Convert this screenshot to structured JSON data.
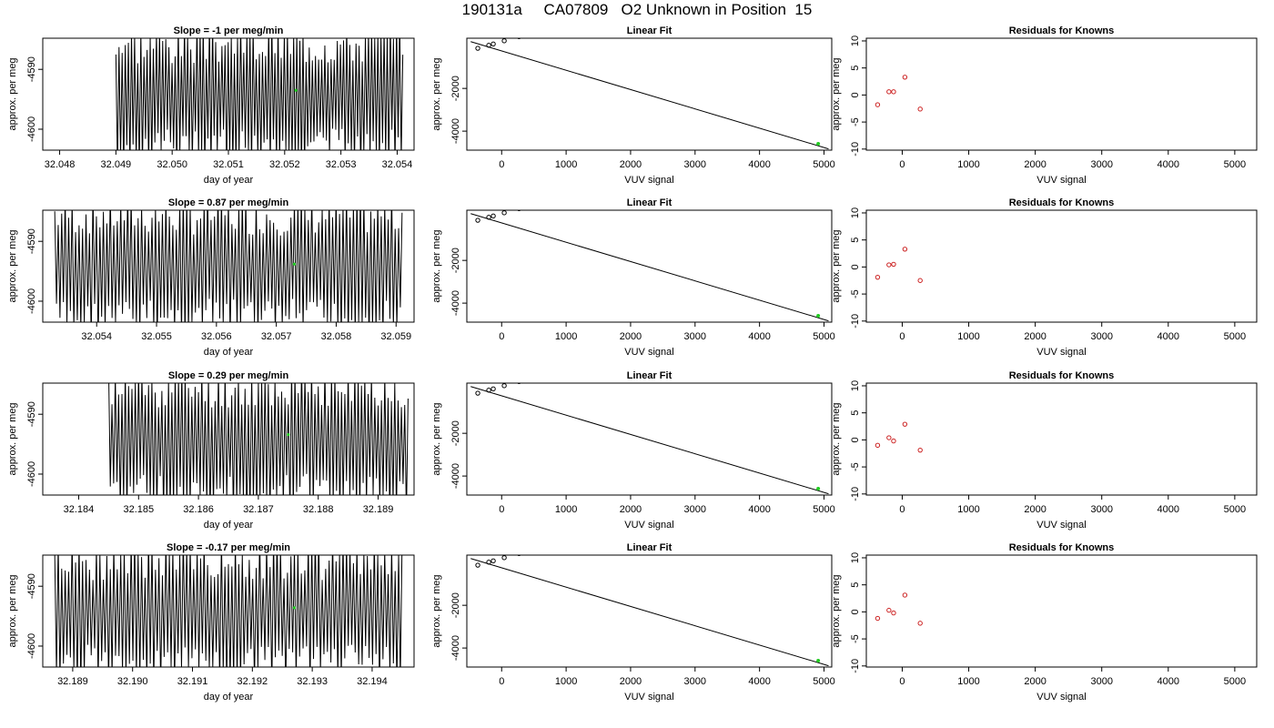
{
  "title": "190131a     CA07809   O2 Unknown in Position  15",
  "colors": {
    "trace": "#000000",
    "unknown": "#22cc22",
    "residual": "#cc2222",
    "fitline": "#000000"
  },
  "chart_data": [
    {
      "row": 0,
      "type": "line",
      "title": "Slope =  -1  per meg/min",
      "xlabel": "day of year",
      "ylabel": "approx. per meg",
      "xlim": [
        32.0477,
        32.0543
      ],
      "ylim": [
        -4603.5,
        -4584.8
      ],
      "xticks": [
        "32.048",
        "32.049",
        "32.050",
        "32.051",
        "32.052",
        "32.053",
        "32.054"
      ],
      "xtick_values": [
        32.048,
        32.049,
        32.05,
        32.051,
        32.052,
        32.053,
        32.054
      ],
      "yticks": [
        "-4590",
        "-4600"
      ],
      "ytick_values": [
        -4590,
        -4600
      ],
      "trace": {
        "start": 32.049,
        "end": 32.0541,
        "center": -4594.5,
        "amplitude": 9.8,
        "cycles": 92,
        "seed": 3
      },
      "marker": {
        "x": 32.0522,
        "y": -4593.5
      }
    },
    {
      "row": 1,
      "type": "line",
      "title": "Slope =  0.87  per meg/min",
      "xlabel": "day of year",
      "ylabel": "approx. per meg",
      "xlim": [
        32.0531,
        32.0593
      ],
      "ylim": [
        -4603.5,
        -4584.8
      ],
      "xticks": [
        "32.054",
        "32.055",
        "32.056",
        "32.057",
        "32.058",
        "32.059"
      ],
      "xtick_values": [
        32.054,
        32.055,
        32.056,
        32.057,
        32.058,
        32.059
      ],
      "yticks": [
        "-4590",
        "-4600"
      ],
      "ytick_values": [
        -4590,
        -4600
      ],
      "trace": {
        "start": 32.0533,
        "end": 32.0591,
        "center": -4594.3,
        "amplitude": 9.6,
        "cycles": 100,
        "seed": 7
      },
      "marker": {
        "x": 32.0573,
        "y": -4593.8
      }
    },
    {
      "row": 2,
      "type": "line",
      "title": "Slope =  0.29  per meg/min",
      "xlabel": "day of year",
      "ylabel": "approx. per meg",
      "xlim": [
        32.1834,
        32.1896
      ],
      "ylim": [
        -4603.5,
        -4584.8
      ],
      "xticks": [
        "32.184",
        "32.185",
        "32.186",
        "32.187",
        "32.188",
        "32.189"
      ],
      "xtick_values": [
        32.184,
        32.185,
        32.186,
        32.187,
        32.188,
        32.189
      ],
      "yticks": [
        "-4590",
        "-4600"
      ],
      "ytick_values": [
        -4590,
        -4600
      ],
      "trace": {
        "start": 32.1845,
        "end": 32.1895,
        "center": -4594.5,
        "amplitude": 9.8,
        "cycles": 90,
        "seed": 11
      },
      "marker": {
        "x": 32.1875,
        "y": -4593.4
      }
    },
    {
      "row": 3,
      "type": "line",
      "title": "Slope =  -0.17  per meg/min",
      "xlabel": "day of year",
      "ylabel": "approx. per meg",
      "xlim": [
        32.1885,
        32.1947
      ],
      "ylim": [
        -4603.5,
        -4584.8
      ],
      "xticks": [
        "32.189",
        "32.190",
        "32.191",
        "32.192",
        "32.193",
        "32.194"
      ],
      "xtick_values": [
        32.189,
        32.19,
        32.191,
        32.192,
        32.193,
        32.194
      ],
      "yticks": [
        "-4590",
        "-4600"
      ],
      "ytick_values": [
        -4590,
        -4600
      ],
      "trace": {
        "start": 32.1887,
        "end": 32.1945,
        "center": -4594.4,
        "amplitude": 9.8,
        "cycles": 100,
        "seed": 19
      },
      "marker": {
        "x": 32.1927,
        "y": -4593.6
      }
    },
    {
      "row": 0,
      "type": "scatter",
      "title": "Linear Fit",
      "xlabel": "VUV signal",
      "ylabel": "approx. per meg",
      "xlim": [
        -540,
        5120
      ],
      "ylim": [
        -4890,
        350
      ],
      "xticks": [
        "0",
        "1000",
        "2000",
        "3000",
        "4000",
        "5000"
      ],
      "xtick_values": [
        0,
        1000,
        2000,
        3000,
        4000,
        5000
      ],
      "yticks": [
        "-2000",
        "-4000"
      ],
      "ytick_values": [
        -2000,
        -4000
      ],
      "knowns": {
        "x": [
          -370,
          -200,
          -130,
          40,
          270
        ],
        "y": [
          -120,
          20,
          80,
          230,
          420
        ]
      },
      "fit_line": {
        "x": [
          -480,
          5070
        ],
        "y": [
          190,
          -4830
        ]
      },
      "unknown": {
        "x": 4910,
        "y": -4594
      }
    },
    {
      "row": 1,
      "type": "scatter",
      "title": "Linear Fit",
      "xlabel": "VUV signal",
      "ylabel": "approx. per meg",
      "xlim": [
        -540,
        5120
      ],
      "ylim": [
        -4890,
        350
      ],
      "xticks": [
        "0",
        "1000",
        "2000",
        "3000",
        "4000",
        "5000"
      ],
      "xtick_values": [
        0,
        1000,
        2000,
        3000,
        4000,
        5000
      ],
      "yticks": [
        "-2000",
        "-4000"
      ],
      "ytick_values": [
        -2000,
        -4000
      ],
      "knowns": {
        "x": [
          -370,
          -200,
          -130,
          40,
          270
        ],
        "y": [
          -120,
          20,
          80,
          230,
          420
        ]
      },
      "fit_line": {
        "x": [
          -480,
          5070
        ],
        "y": [
          190,
          -4830
        ]
      },
      "unknown": {
        "x": 4910,
        "y": -4594
      }
    },
    {
      "row": 2,
      "type": "scatter",
      "title": "Linear Fit",
      "xlabel": "VUV signal",
      "ylabel": "approx. per meg",
      "xlim": [
        -540,
        5120
      ],
      "ylim": [
        -4890,
        350
      ],
      "xticks": [
        "0",
        "1000",
        "2000",
        "3000",
        "4000",
        "5000"
      ],
      "xtick_values": [
        0,
        1000,
        2000,
        3000,
        4000,
        5000
      ],
      "yticks": [
        "-2000",
        "-4000"
      ],
      "ytick_values": [
        -2000,
        -4000
      ],
      "knowns": {
        "x": [
          -370,
          -200,
          -130,
          40,
          270
        ],
        "y": [
          -120,
          20,
          80,
          230,
          420
        ]
      },
      "fit_line": {
        "x": [
          -480,
          5070
        ],
        "y": [
          190,
          -4830
        ]
      },
      "unknown": {
        "x": 4910,
        "y": -4594
      }
    },
    {
      "row": 3,
      "type": "scatter",
      "title": "Linear Fit",
      "xlabel": "VUV signal",
      "ylabel": "approx. per meg",
      "xlim": [
        -540,
        5120
      ],
      "ylim": [
        -4890,
        350
      ],
      "xticks": [
        "0",
        "1000",
        "2000",
        "3000",
        "4000",
        "5000"
      ],
      "xtick_values": [
        0,
        1000,
        2000,
        3000,
        4000,
        5000
      ],
      "yticks": [
        "-2000",
        "-4000"
      ],
      "ytick_values": [
        -2000,
        -4000
      ],
      "knowns": {
        "x": [
          -370,
          -200,
          -130,
          40,
          270
        ],
        "y": [
          -120,
          20,
          80,
          230,
          420
        ]
      },
      "fit_line": {
        "x": [
          -480,
          5070
        ],
        "y": [
          190,
          -4830
        ]
      },
      "unknown": {
        "x": 4910,
        "y": -4594
      }
    },
    {
      "row": 0,
      "type": "scatter",
      "title": "Residuals for Knowns",
      "xlabel": "VUV signal",
      "ylabel": "approx. per meg",
      "xlim": [
        -540,
        5330
      ],
      "ylim": [
        -10.2,
        10.5
      ],
      "xticks": [
        "0",
        "1000",
        "2000",
        "3000",
        "4000",
        "5000"
      ],
      "xtick_values": [
        0,
        1000,
        2000,
        3000,
        4000,
        5000
      ],
      "yticks": [
        "-10",
        "-5",
        "0",
        "5",
        "10"
      ],
      "ytick_values": [
        -10,
        -5,
        0,
        5,
        10
      ],
      "points": {
        "x": [
          -370,
          -200,
          -130,
          40,
          270
        ],
        "y": [
          -1.8,
          0.6,
          0.6,
          3.3,
          -2.6
        ]
      }
    },
    {
      "row": 1,
      "type": "scatter",
      "title": "Residuals for Knowns",
      "xlabel": "VUV signal",
      "ylabel": "approx. per meg",
      "xlim": [
        -540,
        5330
      ],
      "ylim": [
        -10.2,
        10.5
      ],
      "xticks": [
        "0",
        "1000",
        "2000",
        "3000",
        "4000",
        "5000"
      ],
      "xtick_values": [
        0,
        1000,
        2000,
        3000,
        4000,
        5000
      ],
      "yticks": [
        "-10",
        "-5",
        "0",
        "5",
        "10"
      ],
      "ytick_values": [
        -10,
        -5,
        0,
        5,
        10
      ],
      "points": {
        "x": [
          -370,
          -200,
          -130,
          40,
          270
        ],
        "y": [
          -1.9,
          0.4,
          0.5,
          3.3,
          -2.5
        ]
      }
    },
    {
      "row": 2,
      "type": "scatter",
      "title": "Residuals for Knowns",
      "xlabel": "VUV signal",
      "ylabel": "approx. per meg",
      "xlim": [
        -540,
        5330
      ],
      "ylim": [
        -10.2,
        10.5
      ],
      "xticks": [
        "0",
        "1000",
        "2000",
        "3000",
        "4000",
        "5000"
      ],
      "xtick_values": [
        0,
        1000,
        2000,
        3000,
        4000,
        5000
      ],
      "yticks": [
        "-10",
        "-5",
        "0",
        "5",
        "10"
      ],
      "ytick_values": [
        -10,
        -5,
        0,
        5,
        10
      ],
      "points": {
        "x": [
          -370,
          -200,
          -130,
          40,
          270
        ],
        "y": [
          -1.0,
          0.4,
          -0.2,
          2.9,
          -1.9
        ]
      }
    },
    {
      "row": 3,
      "type": "scatter",
      "title": "Residuals for Knowns",
      "xlabel": "VUV signal",
      "ylabel": "approx. per meg",
      "xlim": [
        -540,
        5330
      ],
      "ylim": [
        -10.2,
        10.5
      ],
      "xticks": [
        "0",
        "1000",
        "2000",
        "3000",
        "4000",
        "5000"
      ],
      "xtick_values": [
        0,
        1000,
        2000,
        3000,
        4000,
        5000
      ],
      "yticks": [
        "-10",
        "-5",
        "0",
        "5",
        "10"
      ],
      "ytick_values": [
        -10,
        -5,
        0,
        5,
        10
      ],
      "points": {
        "x": [
          -370,
          -200,
          -130,
          40,
          270
        ],
        "y": [
          -1.2,
          0.3,
          -0.2,
          3.1,
          -2.1
        ]
      }
    }
  ]
}
